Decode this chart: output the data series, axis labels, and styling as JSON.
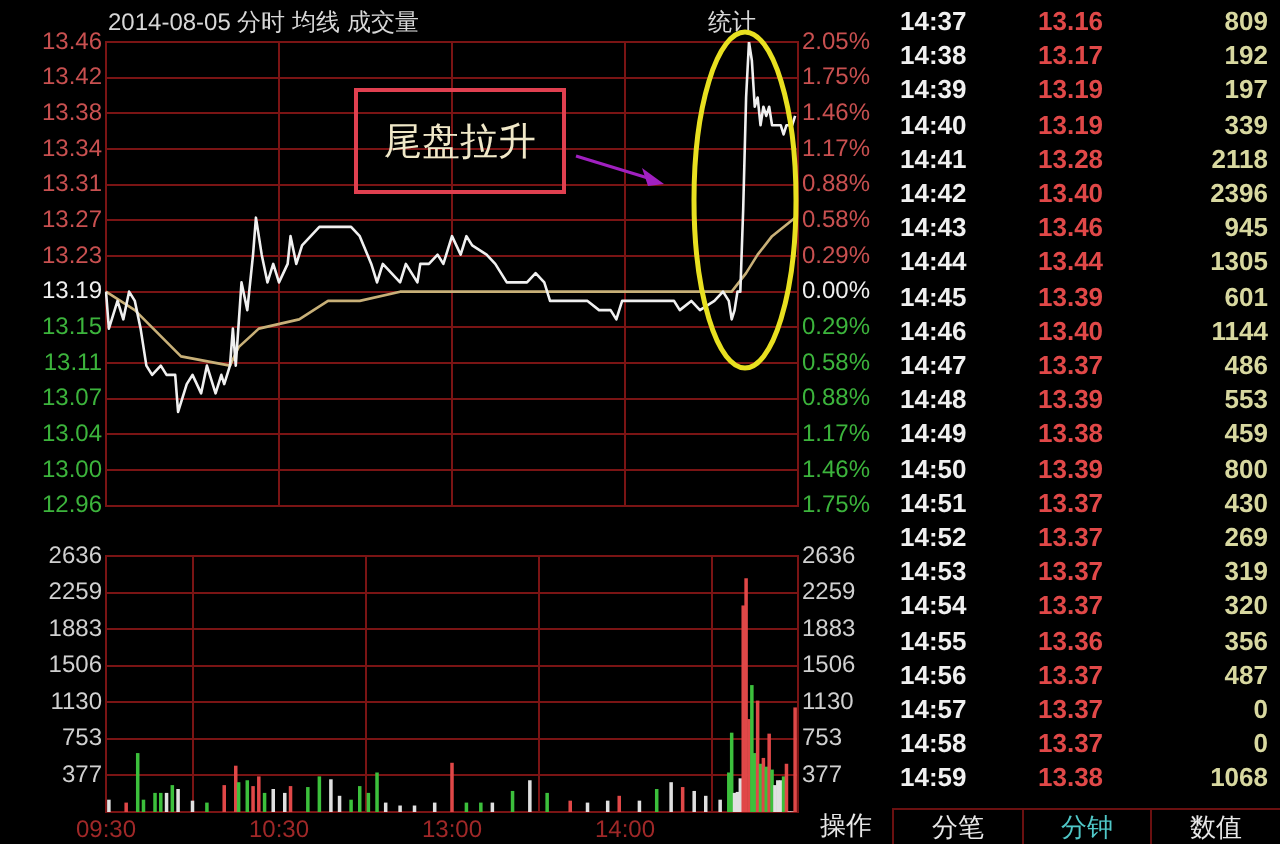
{
  "chart_data": [
    {
      "type": "line",
      "title": "2014-08-05 分时 均线 成交量",
      "annotations": [
        "统计",
        "尾盘拉升",
        "14:37",
        "13.16",
        "809",
        "14:38",
        "13.17",
        "192",
        "14:39",
        "13.19",
        "197",
        "14:40",
        "13.19",
        "339",
        "14:41",
        "13.28",
        "2118",
        "14:42",
        "13.40",
        "2396",
        "14:43",
        "13.46",
        "945",
        "14:44",
        "13.44",
        "1305",
        "14:45",
        "13.39",
        "601",
        "14:46",
        "13.40",
        "1144",
        "14:47",
        "13.37",
        "486",
        "14:48",
        "13.39",
        "553",
        "14:49",
        "13.38",
        "459",
        "14:50",
        "13.39",
        "800",
        "14:51",
        "13.37",
        "430",
        "14:52",
        "13.37",
        "269",
        "14:53",
        "13.37",
        "319",
        "14:54",
        "13.37",
        "320",
        "14:55",
        "13.36",
        "356",
        "14:56",
        "13.37",
        "487",
        "14:57",
        "13.37",
        "0",
        "14:58",
        "13.37",
        "0",
        "14:59",
        "13.38",
        "1068",
        "分笔",
        "分钟",
        "数值"
      ],
      "categories": [
        null,
        null,
        null,
        null,
        null,
        null,
        null,
        null,
        null,
        null,
        null,
        null,
        null,
        null,
        null,
        null,
        null,
        null,
        null,
        null,
        null,
        null,
        null,
        null,
        null,
        null,
        null,
        null,
        null,
        null,
        null,
        null,
        null,
        null,
        null,
        null,
        null,
        null,
        null,
        null,
        null,
        null,
        null,
        null,
        null,
        null,
        null,
        null,
        null,
        null,
        null,
        null,
        null,
        null,
        null,
        null,
        null,
        null,
        null,
        null,
        null,
        null,
        null,
        null,
        null,
        null,
        null,
        null,
        null,
        null,
        null,
        null,
        null,
        null,
        null,
        null,
        null,
        null,
        null,
        null,
        null,
        null,
        null,
        null,
        null,
        null,
        null,
        null,
        null,
        null,
        null,
        null,
        null,
        null,
        null,
        null,
        null,
        null,
        null,
        null,
        null,
        null,
        null,
        null,
        null,
        null,
        null,
        null,
        null,
        null,
        null,
        null,
        null,
        null,
        null,
        null,
        null,
        null,
        null,
        null,
        null,
        null,
        null,
        null,
        null,
        null,
        null,
        null,
        null,
        null,
        null,
        null,
        null,
        null,
        null,
        null,
        null,
        null,
        null,
        null,
        null,
        null,
        null,
        null,
        null,
        null,
        null,
        null,
        null,
        null,
        null,
        null,
        null,
        null,
        null,
        null,
        null,
        null,
        null,
        null,
        null,
        null,
        null,
        null,
        null,
        null,
        null,
        null,
        null,
        null,
        null,
        null,
        null,
        null,
        null,
        null,
        null,
        null,
        null,
        null,
        null,
        null,
        null,
        null,
        null,
        null,
        null,
        null,
        null,
        null,
        null,
        null,
        null,
        null,
        null,
        null,
        null,
        null,
        null,
        null,
        null,
        null,
        null,
        null,
        null,
        null,
        null,
        null,
        null,
        null,
        null,
        null,
        null,
        null,
        null,
        null,
        null,
        null,
        null,
        null,
        null,
        null,
        null,
        null,
        null,
        null,
        null,
        null,
        null,
        null,
        null,
        null,
        null,
        null,
        null,
        null,
        null,
        null,
        null,
        null,
        null
      ],
      "ylim": [
        12.9586,
        13.46
      ],
      "yticks": [
        13.46,
        {
          "value": 13.4214,
          "label": "13.42"
        },
        {
          "value": 13.3829,
          "label": "13.38"
        },
        {
          "value": 13.3443,
          "label": "13.34"
        },
        {
          "value": 13.3057,
          "label": "13.31"
        },
        {
          "value": 13.2671,
          "label": "13.27"
        },
        {
          "value": 13.2286,
          "label": "13.23"
        },
        13.19,
        {
          "value": 13.1514,
          "label": "13.15"
        },
        {
          "value": 13.1129,
          "label": "13.11"
        },
        {
          "value": 13.0743,
          "label": "13.07"
        },
        {
          "value": 13.0357,
          "label": "13.04"
        },
        {
          "value": 12.9971,
          "label": "13.00"
        },
        {
          "value": 12.9586,
          "label": "12.96"
        }
      ],
      "y2lim": [
        -1.754,
        2.047
      ],
      "y2ticks": [
        {
          "value": 2.047,
          "label": "2.05%"
        },
        {
          "value": 1.755,
          "label": "1.75%"
        },
        {
          "value": 1.462,
          "label": "1.46%"
        },
        {
          "value": 1.17,
          "label": "1.17%"
        },
        {
          "value": 0.877,
          "label": "0.88%"
        },
        {
          "value": 0.585,
          "label": "0.58%"
        },
        {
          "value": 0.292,
          "label": "0.29%"
        },
        {
          "value": 0,
          "label": "0.00%"
        },
        {
          "value": -0.292,
          "label": "0.29%"
        },
        {
          "value": -0.585,
          "label": "0.58%"
        },
        {
          "value": -0.877,
          "label": "0.88%"
        },
        {
          "value": -1.17,
          "label": "1.17%"
        },
        {
          "value": -1.462,
          "label": "1.46%"
        },
        {
          "value": -1.754,
          "label": "1.75%"
        }
      ],
      "grid": true,
      "series": [
        {
          "color": "#f0f0f0",
          "values": [
            13.19,
            13.15,
            null,
            null,
            13.18,
            null,
            13.16,
            null,
            13.19,
            null,
            13.18,
            null,
            13.15,
            null,
            13.11,
            null,
            13.1,
            null,
            null,
            13.11,
            null,
            13.1,
            null,
            null,
            13.1,
            13.06,
            null,
            null,
            13.09,
            null,
            13.1,
            null,
            null,
            13.08,
            null,
            13.11,
            null,
            null,
            13.08,
            null,
            13.1,
            13.09,
            null,
            13.11,
            13.15,
            13.11,
            null,
            13.2,
            null,
            13.17,
            null,
            13.23,
            13.27,
            null,
            13.23,
            null,
            13.2,
            null,
            13.22,
            null,
            13.2,
            null,
            null,
            13.22,
            13.25,
            null,
            13.22,
            null,
            13.24,
            null,
            null,
            13.25,
            null,
            null,
            13.26,
            null,
            null,
            null,
            13.26,
            null,
            null,
            13.26,
            null,
            null,
            null,
            13.26,
            null,
            null,
            13.25,
            null,
            null,
            null,
            13.22,
            null,
            13.2,
            null,
            13.22,
            null,
            null,
            null,
            null,
            null,
            13.2,
            null,
            13.22,
            null,
            null,
            null,
            13.2,
            13.22,
            null,
            null,
            13.22,
            null,
            null,
            13.23,
            null,
            13.22,
            null,
            null,
            13.25,
            null,
            null,
            13.23,
            null,
            13.25,
            null,
            13.24,
            null,
            null,
            null,
            null,
            13.23,
            null,
            null,
            13.22,
            null,
            null,
            null,
            13.2,
            null,
            null,
            null,
            null,
            null,
            null,
            13.2,
            null,
            null,
            13.21,
            null,
            null,
            13.2,
            null,
            13.18,
            null,
            null,
            null,
            null,
            null,
            null,
            13.18,
            null,
            null,
            13.18,
            null,
            null,
            13.18,
            null,
            null,
            null,
            13.17,
            null,
            null,
            null,
            13.17,
            null,
            13.16,
            null,
            13.18,
            null,
            null,
            13.18,
            null,
            null,
            13.18,
            null,
            null,
            null,
            null,
            null,
            13.18,
            null,
            null,
            13.18,
            null,
            null,
            13.18,
            null,
            13.17,
            null,
            null,
            null,
            13.18,
            null,
            null,
            13.17,
            null,
            null,
            null,
            null,
            13.18,
            null,
            null,
            13.19,
            null,
            13.18,
            13.16,
            13.17,
            13.19,
            13.19,
            13.28,
            13.4,
            13.46,
            13.44,
            13.39,
            13.4,
            13.37,
            13.39,
            13.38,
            13.39,
            13.37,
            13.37,
            13.37,
            13.37,
            13.36,
            13.37,
            13.37,
            13.37,
            13.38,
            null
          ]
        },
        {
          "color": "#c8b078",
          "values": [
            13.19,
            null,
            null,
            null,
            null,
            null,
            null,
            null,
            null,
            null,
            13.17,
            null,
            null,
            null,
            null,
            null,
            null,
            null,
            null,
            null,
            null,
            null,
            null,
            null,
            null,
            null,
            13.12,
            null,
            null,
            null,
            null,
            null,
            null,
            null,
            null,
            null,
            null,
            null,
            null,
            null,
            null,
            null,
            null,
            13.11,
            null,
            null,
            13.13,
            null,
            null,
            null,
            null,
            null,
            null,
            13.15,
            null,
            null,
            null,
            null,
            null,
            null,
            null,
            null,
            null,
            null,
            null,
            null,
            null,
            13.16,
            null,
            null,
            null,
            null,
            null,
            null,
            null,
            null,
            null,
            13.18,
            null,
            null,
            null,
            null,
            null,
            null,
            null,
            null,
            null,
            null,
            13.18,
            null,
            null,
            null,
            null,
            null,
            null,
            null,
            null,
            null,
            null,
            null,
            null,
            null,
            13.19,
            null,
            null,
            null,
            null,
            null,
            null,
            null,
            null,
            null,
            null,
            null,
            null,
            null,
            null,
            null,
            null,
            null,
            13.19,
            null,
            null,
            null,
            null,
            null,
            null,
            null,
            null,
            null,
            null,
            null,
            null,
            null,
            null,
            null,
            null,
            null,
            null,
            13.19,
            null,
            null,
            null,
            null,
            null,
            null,
            null,
            null,
            null,
            null,
            null,
            null,
            null,
            null,
            null,
            13.19,
            null,
            null,
            null,
            null,
            null,
            null,
            null,
            null,
            null,
            null,
            null,
            null,
            null,
            null,
            null,
            null,
            null,
            null,
            null,
            null,
            null,
            null,
            null,
            null,
            null,
            null,
            null,
            null,
            null,
            null,
            null,
            null,
            null,
            null,
            null,
            null,
            null,
            null,
            null,
            null,
            null,
            null,
            null,
            null,
            null,
            null,
            null,
            null,
            null,
            null,
            null,
            null,
            null,
            null,
            null,
            null,
            null,
            null,
            null,
            null,
            null,
            13.19,
            null,
            null,
            null,
            null,
            13.21,
            null,
            null,
            null,
            13.23,
            null,
            null,
            null,
            null,
            13.25,
            null,
            null,
            null,
            null,
            null,
            null,
            null,
            13.27,
            null
          ]
        }
      ]
    },
    {
      "type": "bar",
      "annotations": [
        "操作"
      ],
      "categories": [
        "09:30",
        null,
        null,
        null,
        null,
        null,
        null,
        null,
        null,
        null,
        null,
        null,
        null,
        null,
        null,
        null,
        null,
        null,
        null,
        null,
        null,
        null,
        null,
        null,
        null,
        null,
        null,
        null,
        null,
        null,
        null,
        null,
        null,
        null,
        null,
        null,
        null,
        null,
        null,
        null,
        null,
        null,
        null,
        null,
        null,
        null,
        null,
        null,
        null,
        null,
        null,
        null,
        null,
        null,
        null,
        null,
        null,
        null,
        null,
        null,
        "10:30",
        null,
        null,
        null,
        null,
        null,
        null,
        null,
        null,
        null,
        null,
        null,
        null,
        null,
        null,
        null,
        null,
        null,
        null,
        null,
        null,
        null,
        null,
        null,
        null,
        null,
        null,
        null,
        null,
        null,
        null,
        null,
        null,
        null,
        null,
        null,
        null,
        null,
        null,
        null,
        null,
        null,
        null,
        null,
        null,
        null,
        null,
        null,
        null,
        null,
        null,
        null,
        null,
        null,
        null,
        null,
        null,
        null,
        null,
        null,
        "13:00",
        null,
        null,
        null,
        null,
        null,
        null,
        null,
        null,
        null,
        null,
        null,
        null,
        null,
        null,
        null,
        null,
        null,
        null,
        null,
        null,
        null,
        null,
        null,
        null,
        null,
        null,
        null,
        null,
        null,
        null,
        null,
        null,
        null,
        null,
        null,
        null,
        null,
        null,
        null,
        null,
        null,
        null,
        null,
        null,
        null,
        null,
        null,
        null,
        null,
        null,
        null,
        null,
        null,
        null,
        null,
        null,
        null,
        null,
        null,
        "14:00",
        null,
        null,
        null,
        null,
        null,
        null,
        null,
        null,
        null,
        null,
        null,
        null,
        null,
        null,
        null,
        null,
        null,
        null,
        null,
        null,
        null,
        null,
        null,
        null,
        null,
        null,
        null,
        null,
        null,
        null,
        null,
        null,
        null,
        null,
        null,
        null,
        null,
        null,
        null,
        null,
        null,
        null,
        null,
        null,
        null,
        null,
        null,
        null,
        null,
        null,
        null,
        null,
        null,
        null,
        null,
        null,
        null,
        null,
        null,
        null
      ],
      "ylim": [
        0,
        2636
      ],
      "yticks": [
        377,
        753,
        1130,
        1506,
        1883,
        2259,
        2636
      ],
      "y2lim": [
        0,
        2636
      ],
      "y2ticks": [
        377,
        753,
        1130,
        1506,
        1883,
        2259,
        2636
      ],
      "grid": true,
      "series": [
        {
          "values": [
            null,
            120,
            null,
            null,
            null,
            null,
            null,
            90,
            null,
            null,
            null,
            600,
            null,
            120,
            null,
            null,
            null,
            190,
            null,
            190,
            null,
            190,
            null,
            270,
            null,
            230,
            null,
            null,
            null,
            null,
            110,
            null,
            null,
            null,
            null,
            90,
            null,
            null,
            null,
            null,
            null,
            270,
            null,
            null,
            null,
            470,
            300,
            null,
            null,
            320,
            null,
            260,
            null,
            360,
            null,
            190,
            null,
            null,
            230,
            null,
            null,
            null,
            190,
            null,
            260,
            null,
            null,
            null,
            null,
            null,
            250,
            null,
            null,
            null,
            360,
            null,
            null,
            null,
            330,
            null,
            null,
            160,
            null,
            null,
            null,
            120,
            null,
            null,
            260,
            null,
            null,
            190,
            null,
            null,
            400,
            null,
            null,
            90,
            null,
            null,
            null,
            null,
            60,
            null,
            null,
            null,
            null,
            60,
            null,
            null,
            null,
            null,
            null,
            null,
            90,
            null,
            null,
            null,
            null,
            null,
            500,
            null,
            null,
            null,
            null,
            90,
            null,
            null,
            null,
            null,
            90,
            null,
            null,
            null,
            90,
            null,
            null,
            null,
            null,
            null,
            null,
            210,
            null,
            null,
            null,
            null,
            null,
            320,
            null,
            null,
            null,
            null,
            null,
            190,
            null,
            null,
            null,
            null,
            null,
            null,
            null,
            110,
            null,
            null,
            null,
            null,
            null,
            90,
            null,
            null,
            null,
            null,
            null,
            null,
            110,
            null,
            null,
            null,
            160,
            null,
            null,
            null,
            null,
            null,
            null,
            110,
            null,
            null,
            null,
            null,
            null,
            230,
            null,
            null,
            null,
            null,
            300,
            null,
            null,
            null,
            250,
            null,
            null,
            null,
            210,
            null,
            null,
            null,
            160,
            null,
            null,
            null,
            null,
            120,
            null,
            null,
            400,
            810,
            190,
            200,
            340,
            2120,
            2400,
            950,
            1300,
            600,
            1140,
            490,
            550,
            460,
            800,
            430,
            270,
            320,
            320,
            360,
            490,
            0,
            0,
            1070,
            null
          ],
          "colors": [
            null,
            "#e0e0e0",
            null,
            null,
            null,
            null,
            null,
            "#e04848",
            null,
            null,
            null,
            "#3cc03c",
            null,
            "#3cc03c",
            null,
            null,
            null,
            "#3cc03c",
            null,
            "#3cc03c",
            null,
            "#e0e0e0",
            null,
            "#3cc03c",
            null,
            "#e0e0e0",
            null,
            null,
            null,
            null,
            "#e0e0e0",
            null,
            null,
            null,
            null,
            "#3cc03c",
            null,
            null,
            null,
            null,
            null,
            "#e04848",
            null,
            null,
            null,
            "#e04848",
            "#3cc03c",
            null,
            null,
            "#3cc03c",
            null,
            "#e04848",
            null,
            "#e04848",
            null,
            "#3cc03c",
            null,
            null,
            "#e0e0e0",
            null,
            null,
            null,
            "#e0e0e0",
            null,
            "#e04848",
            null,
            null,
            null,
            null,
            null,
            "#3cc03c",
            null,
            null,
            null,
            "#3cc03c",
            null,
            null,
            null,
            "#e0e0e0",
            null,
            null,
            "#e0e0e0",
            null,
            null,
            null,
            "#3cc03c",
            null,
            null,
            "#3cc03c",
            null,
            null,
            "#3cc03c",
            null,
            null,
            "#3cc03c",
            null,
            null,
            "#e0e0e0",
            null,
            null,
            null,
            null,
            "#e0e0e0",
            null,
            null,
            null,
            null,
            "#e0e0e0",
            null,
            null,
            null,
            null,
            null,
            null,
            "#e0e0e0",
            null,
            null,
            null,
            null,
            null,
            "#e04848",
            null,
            null,
            null,
            null,
            "#3cc03c",
            null,
            null,
            null,
            null,
            "#3cc03c",
            null,
            null,
            null,
            "#e0e0e0",
            null,
            null,
            null,
            null,
            null,
            null,
            "#3cc03c",
            null,
            null,
            null,
            null,
            null,
            "#e0e0e0",
            null,
            null,
            null,
            null,
            null,
            "#3cc03c",
            null,
            null,
            null,
            null,
            null,
            null,
            null,
            "#e04848",
            null,
            null,
            null,
            null,
            null,
            "#e0e0e0",
            null,
            null,
            null,
            null,
            null,
            null,
            "#e0e0e0",
            null,
            null,
            null,
            "#e04848",
            null,
            null,
            null,
            null,
            null,
            null,
            "#e0e0e0",
            null,
            null,
            null,
            null,
            null,
            "#3cc03c",
            null,
            null,
            null,
            null,
            "#e0e0e0",
            null,
            null,
            null,
            "#e04848",
            null,
            null,
            null,
            "#e0e0e0",
            null,
            null,
            null,
            "#e0e0e0",
            null,
            null,
            null,
            null,
            "#e0e0e0",
            null,
            null,
            "#3cc03c",
            "#3cc03c",
            "#e0e0e0",
            "#e0e0e0",
            "#e0e0e0",
            "#e04848",
            "#e04848",
            "#e04848",
            "#3cc03c",
            "#3cc03c",
            "#e04848",
            "#3cc03c",
            "#e04848",
            "#3cc03c",
            "#e04848",
            "#3cc03c",
            "#e0e0e0",
            "#e0e0e0",
            "#e0e0e0",
            "#3cc03c",
            "#e04848",
            "#e0e0e0",
            "#e0e0e0",
            "#e04848",
            null
          ]
        }
      ]
    }
  ]
}
